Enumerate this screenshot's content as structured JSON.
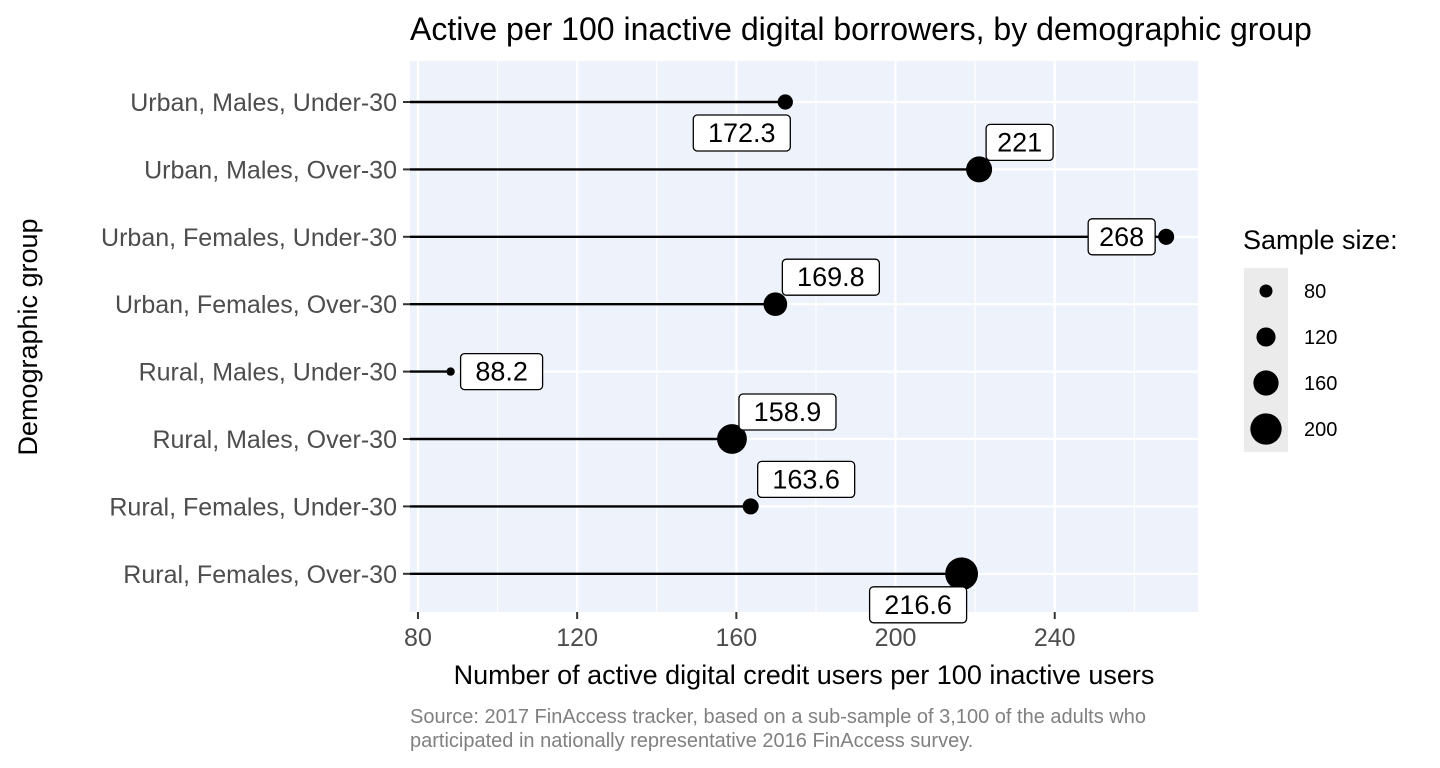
{
  "chart_data": {
    "type": "lollipop",
    "title": "Active per 100 inactive digital borrowers, by demographic group",
    "xlabel": "Number of active digital credit users per 100 inactive users",
    "ylabel": "Demographic group",
    "caption_lines": [
      "Source: 2017 FinAccess tracker, based on a sub-sample of 3,100 of the adults who",
      "participated in nationally representative 2016 FinAccess survey."
    ],
    "xlim": [
      78,
      276
    ],
    "xticks": [
      80,
      120,
      160,
      200,
      240
    ],
    "grid": true,
    "panel_background": "#eef3fb",
    "grid_color": "#ffffff",
    "point_color": "#000000",
    "segment_start": 78,
    "categories": [
      "Urban, Males, Under-30",
      "Urban, Males, Over-30",
      "Urban, Females, Under-30",
      "Urban, Females, Over-30",
      "Rural, Males, Under-30",
      "Rural, Males, Over-30",
      "Rural, Females, Under-30",
      "Rural, Females, Over-30"
    ],
    "values": [
      172.3,
      221,
      268,
      169.8,
      88.2,
      158.9,
      163.6,
      216.6
    ],
    "value_labels": [
      "172.3",
      "221",
      "268",
      "169.8",
      "88.2",
      "158.9",
      "163.6",
      "216.6"
    ],
    "label_placement": [
      "below-left",
      "above-right",
      "left",
      "above-right",
      "right",
      "above-right",
      "above-right",
      "below-left"
    ],
    "sample_sizes": [
      95,
      165,
      100,
      150,
      50,
      190,
      100,
      210
    ],
    "legend": {
      "title": "Sample size:",
      "position": "right",
      "entries": [
        {
          "label": "80",
          "size": 80
        },
        {
          "label": "120",
          "size": 120
        },
        {
          "label": "160",
          "size": 160
        },
        {
          "label": "200",
          "size": 200
        }
      ]
    }
  }
}
